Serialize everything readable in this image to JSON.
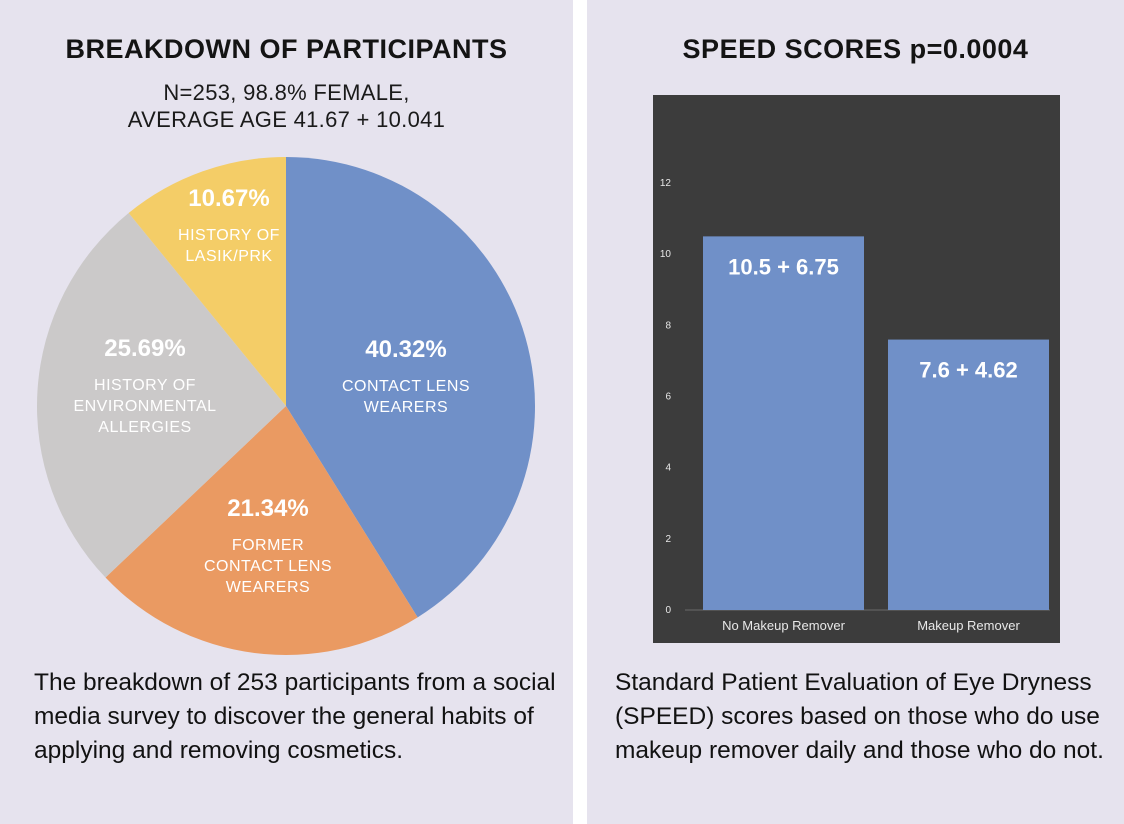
{
  "left": {
    "title": "BREAKDOWN OF PARTICIPANTS",
    "subtitle_line1": "N=253, 98.8% FEMALE,",
    "subtitle_line2": "AVERAGE AGE 41.67 + 10.041",
    "caption": "The breakdown of 253 participants from a social media survey to discover the general habits of applying and removing cosmetics."
  },
  "right": {
    "title": "SPEED SCORES p=0.0004",
    "caption": "Standard Patient Evaluation of Eye Dryness (SPEED) scores based on those who do use makeup remover daily and those who do not."
  },
  "chart_data": [
    {
      "type": "pie",
      "title": "BREAKDOWN OF PARTICIPANTS",
      "slices": [
        {
          "label_lines": [
            "CONTACT LENS",
            "WEARERS"
          ],
          "value": 40.32,
          "value_label": "40.32%",
          "color": "#7090c8"
        },
        {
          "label_lines": [
            "FORMER",
            "CONTACT LENS",
            "WEARERS"
          ],
          "value": 21.34,
          "value_label": "21.34%",
          "color": "#ea9a62"
        },
        {
          "label_lines": [
            "HISTORY OF",
            "ENVIRONMENTAL",
            "ALLERGIES"
          ],
          "value": 25.69,
          "value_label": "25.69%",
          "color": "#cbc9c9"
        },
        {
          "label_lines": [
            "HISTORY OF",
            "LASIK/PRK"
          ],
          "value": 10.67,
          "value_label": "10.67%",
          "color": "#f4cd67"
        }
      ]
    },
    {
      "type": "bar",
      "title": "SPEED SCORES p=0.0004",
      "categories": [
        "No Makeup Remover",
        "Makeup Remover"
      ],
      "values": [
        10.5,
        7.6
      ],
      "value_labels": [
        "10.5 + 6.75",
        "7.6 + 4.62"
      ],
      "bar_color": "#7090c8",
      "ylim": [
        0,
        12
      ],
      "yticks": [
        0,
        2,
        4,
        6,
        8,
        10,
        12
      ],
      "background": "#3c3c3c",
      "xlabel": "",
      "ylabel": ""
    }
  ]
}
